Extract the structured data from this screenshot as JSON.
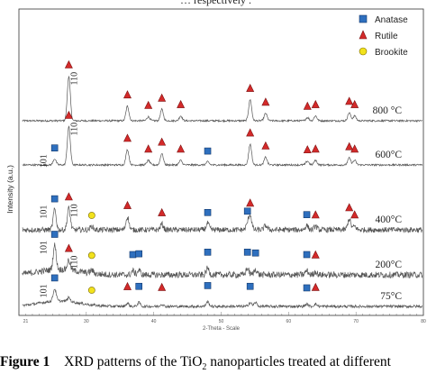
{
  "page": {
    "top_fragment": "… respectively ."
  },
  "caption": {
    "label": "Figure 1",
    "text_before": "XRD patterns of the TiO",
    "sub": "2",
    "text_after": " nanoparticles treated at different"
  },
  "chart_data": {
    "type": "line",
    "title": "",
    "xlabel": "2-Theta - Scale",
    "ylabel": "Intensity (a.u.)",
    "xlim": [
      20,
      80
    ],
    "xticks": [
      "21",
      "30",
      "40",
      "50",
      "60",
      "70",
      "80"
    ],
    "legend": {
      "placement": "top-right",
      "items": [
        {
          "name": "Anatase",
          "marker": "square",
          "color": "#2e6fbe"
        },
        {
          "name": "Rutile",
          "marker": "triangle",
          "color": "#d42a2a"
        },
        {
          "name": "Brookite",
          "marker": "circle",
          "color": "#f2e21c"
        }
      ]
    },
    "series": [
      {
        "name": "800 °C",
        "noise": 2,
        "baseline": 0.9,
        "peaks": [
          [
            27.4,
            55
          ],
          [
            36.1,
            18
          ],
          [
            39.2,
            5
          ],
          [
            41.2,
            14
          ],
          [
            44.0,
            6
          ],
          [
            54.3,
            26
          ],
          [
            56.6,
            9
          ],
          [
            62.8,
            4
          ],
          [
            64.0,
            6
          ],
          [
            69.0,
            10
          ],
          [
            69.8,
            6
          ]
        ],
        "markers": [
          {
            "x": 27.4,
            "type": "rutile",
            "label": "110"
          },
          {
            "x": 36.1,
            "type": "rutile"
          },
          {
            "x": 39.2,
            "type": "rutile"
          },
          {
            "x": 41.2,
            "type": "rutile"
          },
          {
            "x": 44.0,
            "type": "rutile"
          },
          {
            "x": 54.3,
            "type": "rutile"
          },
          {
            "x": 56.6,
            "type": "rutile"
          },
          {
            "x": 62.8,
            "type": "rutile"
          },
          {
            "x": 64.0,
            "type": "rutile"
          },
          {
            "x": 69.0,
            "type": "rutile"
          },
          {
            "x": 69.8,
            "type": "rutile"
          }
        ]
      },
      {
        "name": "600°C",
        "noise": 2,
        "baseline": 0.85,
        "peaks": [
          [
            25.3,
            8
          ],
          [
            27.4,
            50
          ],
          [
            36.1,
            20
          ],
          [
            39.2,
            6
          ],
          [
            41.2,
            15
          ],
          [
            44.0,
            6
          ],
          [
            48.0,
            4
          ],
          [
            54.3,
            27
          ],
          [
            56.6,
            10
          ],
          [
            62.8,
            5
          ],
          [
            64.0,
            6
          ],
          [
            69.0,
            9
          ],
          [
            69.8,
            6
          ]
        ],
        "markers": [
          {
            "x": 25.3,
            "type": "anatase",
            "label": "101"
          },
          {
            "x": 27.4,
            "type": "rutile",
            "label": "110"
          },
          {
            "x": 36.1,
            "type": "rutile"
          },
          {
            "x": 39.2,
            "type": "rutile"
          },
          {
            "x": 41.2,
            "type": "rutile"
          },
          {
            "x": 44.0,
            "type": "rutile"
          },
          {
            "x": 48.0,
            "type": "anatase"
          },
          {
            "x": 54.3,
            "type": "rutile"
          },
          {
            "x": 56.6,
            "type": "rutile"
          },
          {
            "x": 62.8,
            "type": "rutile"
          },
          {
            "x": 64.0,
            "type": "rutile"
          },
          {
            "x": 69.0,
            "type": "rutile"
          },
          {
            "x": 69.8,
            "type": "rutile"
          }
        ]
      },
      {
        "name": "400°C",
        "noise": 6,
        "baseline": 0.8,
        "peaks": [
          [
            25.3,
            28
          ],
          [
            27.4,
            30
          ],
          [
            30.8,
            5
          ],
          [
            36.1,
            18
          ],
          [
            41.2,
            8
          ],
          [
            48.0,
            9
          ],
          [
            53.9,
            7
          ],
          [
            54.3,
            20
          ],
          [
            56.6,
            6
          ],
          [
            62.7,
            6
          ],
          [
            64.0,
            5
          ],
          [
            69.0,
            15
          ],
          [
            69.8,
            5
          ]
        ],
        "markers": [
          {
            "x": 25.3,
            "type": "anatase",
            "label": "101"
          },
          {
            "x": 27.4,
            "type": "rutile",
            "label": "110"
          },
          {
            "x": 30.8,
            "type": "brookite"
          },
          {
            "x": 36.1,
            "type": "rutile"
          },
          {
            "x": 41.2,
            "type": "rutile"
          },
          {
            "x": 48.0,
            "type": "anatase"
          },
          {
            "x": 53.9,
            "type": "anatase"
          },
          {
            "x": 54.3,
            "type": "rutile"
          },
          {
            "x": 62.7,
            "type": "anatase"
          },
          {
            "x": 64.0,
            "type": "rutile"
          },
          {
            "x": 69.0,
            "type": "rutile"
          },
          {
            "x": 69.8,
            "type": "rutile"
          }
        ]
      },
      {
        "name": "200°C",
        "noise": 7,
        "baseline": 0.9,
        "peaks": [
          [
            25.3,
            30
          ],
          [
            27.4,
            12
          ],
          [
            30.8,
            4
          ],
          [
            36.9,
            5
          ],
          [
            37.8,
            6
          ],
          [
            48.0,
            8
          ],
          [
            53.9,
            8
          ],
          [
            55.1,
            7
          ],
          [
            62.7,
            5
          ],
          [
            64.0,
            4
          ]
        ],
        "markers": [
          {
            "x": 25.3,
            "type": "anatase",
            "label": "101"
          },
          {
            "x": 27.4,
            "type": "rutile",
            "label": "110"
          },
          {
            "x": 30.8,
            "type": "brookite"
          },
          {
            "x": 36.9,
            "type": "anatase"
          },
          {
            "x": 37.8,
            "type": "anatase"
          },
          {
            "x": 48.0,
            "type": "anatase"
          },
          {
            "x": 53.9,
            "type": "anatase"
          },
          {
            "x": 55.1,
            "type": "anatase"
          },
          {
            "x": 62.7,
            "type": "anatase"
          },
          {
            "x": 64.0,
            "type": "rutile"
          }
        ]
      },
      {
        "name": "75°C",
        "noise": 3,
        "baseline": 0.85,
        "peaks": [
          [
            25.3,
            16
          ],
          [
            27.4,
            5
          ],
          [
            36.1,
            4
          ],
          [
            37.8,
            5
          ],
          [
            41.2,
            3
          ],
          [
            48.0,
            6
          ],
          [
            54.3,
            5
          ],
          [
            55.1,
            5
          ],
          [
            62.7,
            3
          ],
          [
            64.0,
            3
          ]
        ],
        "markers": [
          {
            "x": 25.3,
            "type": "anatase",
            "label": "101"
          },
          {
            "x": 30.8,
            "type": "brookite"
          },
          {
            "x": 36.1,
            "type": "rutile"
          },
          {
            "x": 37.8,
            "type": "anatase"
          },
          {
            "x": 41.2,
            "type": "rutile"
          },
          {
            "x": 48.0,
            "type": "anatase"
          },
          {
            "x": 54.3,
            "type": "anatase"
          },
          {
            "x": 62.7,
            "type": "anatase"
          },
          {
            "x": 64.0,
            "type": "rutile"
          }
        ]
      }
    ]
  }
}
